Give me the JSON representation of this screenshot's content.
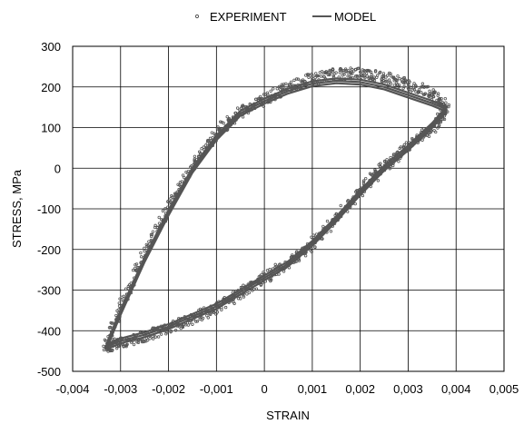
{
  "chart_data": {
    "type": "scatter",
    "xlabel": "STRAIN",
    "ylabel": "STRESS, MPa",
    "xlim": [
      -0.004,
      0.005
    ],
    "ylim": [
      -500,
      300
    ],
    "xticks": [
      "-0,004",
      "-0,003",
      "-0,002",
      "-0,001",
      "0",
      "0,001",
      "0,002",
      "0,003",
      "0,004",
      "0,005"
    ],
    "yticks": [
      "300",
      "200",
      "100",
      "0",
      "-100",
      "-200",
      "-300",
      "-400",
      "-500"
    ],
    "grid": true,
    "legend_position": "top-center",
    "series": [
      {
        "name": "EXPERIMENT",
        "style": "markers",
        "color": "#555555",
        "x": [
          -0.0033,
          -0.003,
          -0.0025,
          -0.002,
          -0.0015,
          -0.001,
          -0.0005,
          0.0,
          0.0005,
          0.001,
          0.0015,
          0.002,
          0.0025,
          0.003,
          0.0035,
          0.0038,
          0.0036,
          0.003,
          0.0025,
          0.002,
          0.0015,
          0.001,
          0.0005,
          0.0,
          -0.0005,
          -0.001,
          -0.0015,
          -0.002,
          -0.0025,
          -0.003,
          -0.0033
        ],
        "y": [
          -440,
          -345,
          -210,
          -95,
          5,
          85,
          140,
          170,
          200,
          220,
          232,
          235,
          225,
          205,
          185,
          150,
          110,
          55,
          5,
          -55,
          -125,
          -185,
          -235,
          -270,
          -310,
          -345,
          -370,
          -395,
          -415,
          -430,
          -440
        ]
      },
      {
        "name": "MODEL",
        "style": "line",
        "color": "#555555",
        "x": [
          -0.0033,
          -0.003,
          -0.0025,
          -0.002,
          -0.0015,
          -0.001,
          -0.0005,
          0.0,
          0.0005,
          0.001,
          0.0015,
          0.002,
          0.0025,
          0.003,
          0.0035,
          0.0038,
          0.0035,
          0.003,
          0.0025,
          0.002,
          0.0015,
          0.001,
          0.0005,
          0.0,
          -0.0005,
          -0.001,
          -0.0015,
          -0.002,
          -0.0025,
          -0.003,
          -0.0033
        ],
        "y": [
          -440,
          -355,
          -225,
          -110,
          -5,
          75,
          135,
          165,
          190,
          208,
          215,
          212,
          200,
          180,
          160,
          145,
          105,
          50,
          0,
          -60,
          -125,
          -185,
          -235,
          -270,
          -305,
          -340,
          -365,
          -390,
          -410,
          -425,
          -440
        ]
      }
    ]
  }
}
